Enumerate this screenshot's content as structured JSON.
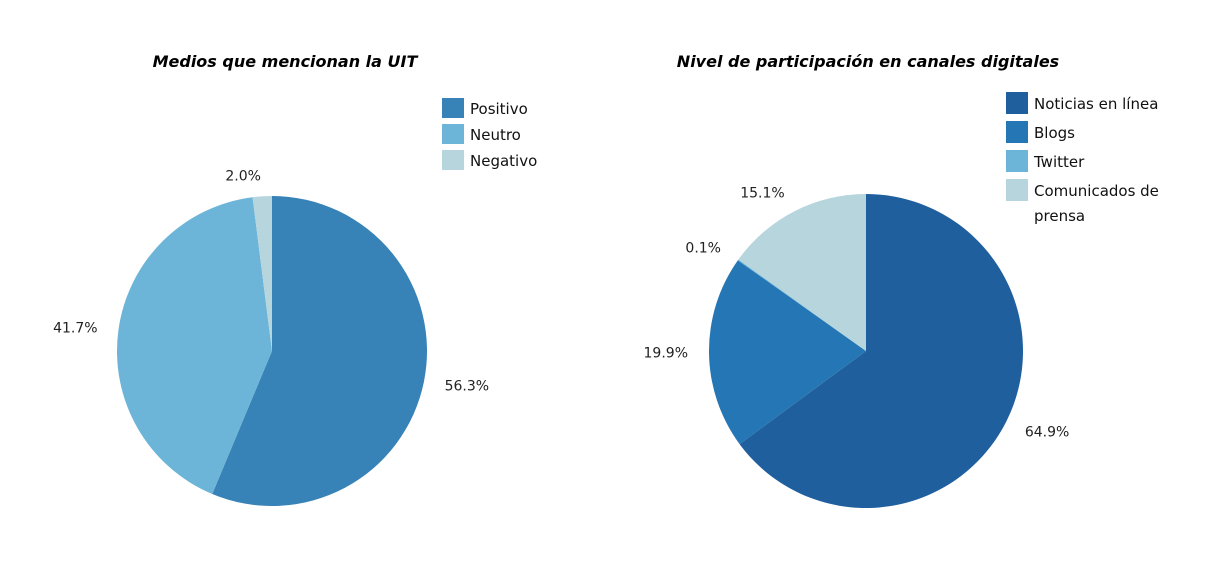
{
  "chart_data": [
    {
      "type": "pie",
      "title": "Medios que mencionan la UIT",
      "categories": [
        "Positivo",
        "Neutro",
        "Negativo"
      ],
      "values": [
        56.3,
        41.7,
        2.0
      ],
      "labels": [
        "56.3%",
        "41.7%",
        "2.0%"
      ],
      "colors": [
        "#3782b6",
        "#6db5d8",
        "#b7d5dc"
      ],
      "legend": {
        "entries": [
          [
            "Positivo"
          ],
          [
            "Neutro"
          ],
          [
            "Negativo"
          ]
        ],
        "position": "top-right"
      }
    },
    {
      "type": "pie",
      "title": "Nivel de participación en canales digitales",
      "categories": [
        "Noticias en línea",
        "Blogs",
        "Twitter",
        "Comunicados de prensa"
      ],
      "values": [
        64.9,
        19.9,
        0.1,
        15.1
      ],
      "labels": [
        "64.9%",
        "19.9%",
        "0.1%",
        "15.1%"
      ],
      "colors": [
        "#1f5f9e",
        "#2476b4",
        "#6db5d8",
        "#b7d5dc"
      ],
      "legend": {
        "entries": [
          [
            "Noticias en línea"
          ],
          [
            "Blogs"
          ],
          [
            "Twitter"
          ],
          [
            "Comunicados de",
            "prensa"
          ]
        ],
        "position": "top-right"
      }
    }
  ]
}
